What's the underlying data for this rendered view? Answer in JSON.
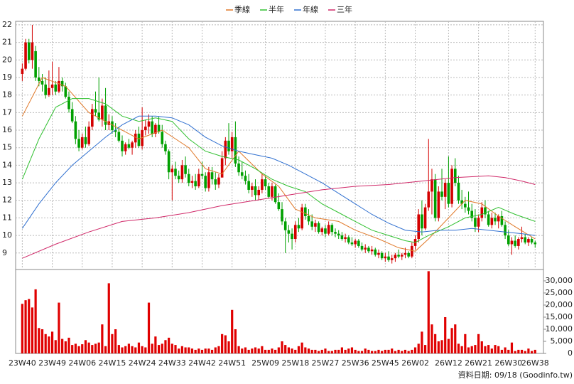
{
  "chart_data": {
    "type": "candlestick",
    "source": "資料日期: 09/18 (Goodinfo.tw)",
    "up_color": "#d40000",
    "down_color": "#00a000",
    "grid": true,
    "xlim": [
      -2,
      156.5
    ],
    "xticks": [
      {
        "value": 0,
        "label": "23W40"
      },
      {
        "value": 9,
        "label": "23W49"
      },
      {
        "value": 18,
        "label": "24W06"
      },
      {
        "value": 27,
        "label": "24W15"
      },
      {
        "value": 36,
        "label": "24W24"
      },
      {
        "value": 45,
        "label": "24W33"
      },
      {
        "value": 54,
        "label": "24W42"
      },
      {
        "value": 63,
        "label": "24W51"
      },
      {
        "value": 73,
        "label": "25W09"
      },
      {
        "value": 82,
        "label": "25W18"
      },
      {
        "value": 91,
        "label": "25W27"
      },
      {
        "value": 100,
        "label": "25W36"
      },
      {
        "value": 109,
        "label": "25W45"
      },
      {
        "value": 118,
        "label": "26W02"
      },
      {
        "value": 128,
        "label": "26W12"
      },
      {
        "value": 137,
        "label": "26W21"
      },
      {
        "value": 146,
        "label": "26W30"
      },
      {
        "value": 154,
        "label": "26W38"
      }
    ],
    "ylim": [
      8.1,
      22.2
    ],
    "yticks": [
      9,
      10,
      11,
      12,
      13,
      14,
      15,
      16,
      17,
      18,
      19,
      20,
      21,
      22
    ],
    "ohlc": [
      [
        19.2,
        19.8,
        18.8,
        19.5
      ],
      [
        19.5,
        21.2,
        19.4,
        21.0
      ],
      [
        21.0,
        21.2,
        19.8,
        20.0
      ],
      [
        20.0,
        22.0,
        19.5,
        21.0
      ],
      [
        20.5,
        20.8,
        18.8,
        19.0
      ],
      [
        19.0,
        19.6,
        18.5,
        18.8
      ],
      [
        18.8,
        19.2,
        18.2,
        18.6
      ],
      [
        18.6,
        19.0,
        17.8,
        18.0
      ],
      [
        18.0,
        19.4,
        17.9,
        18.4
      ],
      [
        18.4,
        19.9,
        18.0,
        18.6
      ],
      [
        18.6,
        18.8,
        18.0,
        18.2
      ],
      [
        18.2,
        19.6,
        18.1,
        18.8
      ],
      [
        18.8,
        19.0,
        18.2,
        18.5
      ],
      [
        18.5,
        18.7,
        17.8,
        17.9
      ],
      [
        17.9,
        18.2,
        17.0,
        17.2
      ],
      [
        17.2,
        17.6,
        16.4,
        16.5
      ],
      [
        16.5,
        16.8,
        15.2,
        15.5
      ],
      [
        15.5,
        16.0,
        14.8,
        15.0
      ],
      [
        15.0,
        15.8,
        14.9,
        15.6
      ],
      [
        15.6,
        16.2,
        15.0,
        15.2
      ],
      [
        15.2,
        16.5,
        15.1,
        16.2
      ],
      [
        16.2,
        17.5,
        16.0,
        17.2
      ],
      [
        17.2,
        18.2,
        16.8,
        17.0
      ],
      [
        17.0,
        19.0,
        16.5,
        16.6
      ],
      [
        16.6,
        17.8,
        16.2,
        17.4
      ],
      [
        17.4,
        18.4,
        16.0,
        16.3
      ],
      [
        16.3,
        16.9,
        16.0,
        16.5
      ],
      [
        16.5,
        16.8,
        15.8,
        16.0
      ],
      [
        16.0,
        16.4,
        15.6,
        15.9
      ],
      [
        15.9,
        16.2,
        15.3,
        15.4
      ],
      [
        15.4,
        15.7,
        14.5,
        14.8
      ],
      [
        14.8,
        15.3,
        14.6,
        15.2
      ],
      [
        15.2,
        15.5,
        14.9,
        15.0
      ],
      [
        15.0,
        15.4,
        14.6,
        15.3
      ],
      [
        15.3,
        16.0,
        15.0,
        15.8
      ],
      [
        15.8,
        16.2,
        15.0,
        15.1
      ],
      [
        15.1,
        17.3,
        14.9,
        16.0
      ],
      [
        16.0,
        16.6,
        15.7,
        16.2
      ],
      [
        16.2,
        16.9,
        15.8,
        16.5
      ],
      [
        16.5,
        16.8,
        15.6,
        15.8
      ],
      [
        15.8,
        16.4,
        15.6,
        16.3
      ],
      [
        16.3,
        16.8,
        15.8,
        15.9
      ],
      [
        15.9,
        16.3,
        15.0,
        15.2
      ],
      [
        15.2,
        15.4,
        14.6,
        14.8
      ],
      [
        14.8,
        14.9,
        13.2,
        13.6
      ],
      [
        13.6,
        14.0,
        12.0,
        13.8
      ],
      [
        13.8,
        14.2,
        13.2,
        13.4
      ],
      [
        13.4,
        13.7,
        13.0,
        13.2
      ],
      [
        13.2,
        14.3,
        13.0,
        14.0
      ],
      [
        14.0,
        14.5,
        13.3,
        13.5
      ],
      [
        13.5,
        13.8,
        12.8,
        13.0
      ],
      [
        13.0,
        13.4,
        12.7,
        13.1
      ],
      [
        13.1,
        13.5,
        12.6,
        12.8
      ],
      [
        12.8,
        13.8,
        12.7,
        13.5
      ],
      [
        13.5,
        14.2,
        13.2,
        13.4
      ],
      [
        13.4,
        13.6,
        12.5,
        12.7
      ],
      [
        12.7,
        13.9,
        12.5,
        13.6
      ],
      [
        13.6,
        13.9,
        12.9,
        13.2
      ],
      [
        13.2,
        13.6,
        12.6,
        12.9
      ],
      [
        12.9,
        13.5,
        12.7,
        13.3
      ],
      [
        13.3,
        14.8,
        13.3,
        14.4
      ],
      [
        14.4,
        15.6,
        14.0,
        15.4
      ],
      [
        15.4,
        16.4,
        14.6,
        14.8
      ],
      [
        14.8,
        15.9,
        14.4,
        15.6
      ],
      [
        15.6,
        16.5,
        13.9,
        14.1
      ],
      [
        14.1,
        14.5,
        13.4,
        13.6
      ],
      [
        13.6,
        14.2,
        13.2,
        13.4
      ],
      [
        13.4,
        13.7,
        12.9,
        13.1
      ],
      [
        13.1,
        13.5,
        12.4,
        12.6
      ],
      [
        12.6,
        13.0,
        12.2,
        12.8
      ],
      [
        12.8,
        13.2,
        12.0,
        12.3
      ],
      [
        12.3,
        12.8,
        12.0,
        12.6
      ],
      [
        12.6,
        13.5,
        12.4,
        13.2
      ],
      [
        13.2,
        13.4,
        12.6,
        12.8
      ],
      [
        12.8,
        13.0,
        12.1,
        12.2
      ],
      [
        12.2,
        13.0,
        12.0,
        12.8
      ],
      [
        12.8,
        12.9,
        11.8,
        11.9
      ],
      [
        11.9,
        12.4,
        11.4,
        11.5
      ],
      [
        11.5,
        11.9,
        10.6,
        10.8
      ],
      [
        10.8,
        11.0,
        9.0,
        10.3
      ],
      [
        10.3,
        10.6,
        9.6,
        10.1
      ],
      [
        10.1,
        10.4,
        9.2,
        9.8
      ],
      [
        9.8,
        10.8,
        9.6,
        10.6
      ],
      [
        10.6,
        11.0,
        10.2,
        10.4
      ],
      [
        10.4,
        11.8,
        10.3,
        11.6
      ],
      [
        11.6,
        11.8,
        10.9,
        11.1
      ],
      [
        11.1,
        11.5,
        10.6,
        10.8
      ],
      [
        10.8,
        11.2,
        10.3,
        10.5
      ],
      [
        10.5,
        10.9,
        10.2,
        10.7
      ],
      [
        10.7,
        10.8,
        10.1,
        10.2
      ],
      [
        10.2,
        10.5,
        10.0,
        10.4
      ],
      [
        10.4,
        10.6,
        9.9,
        10.1
      ],
      [
        10.1,
        10.8,
        10.0,
        10.6
      ],
      [
        10.6,
        10.7,
        10.0,
        10.2
      ],
      [
        10.2,
        10.4,
        9.9,
        10.1
      ],
      [
        10.1,
        10.3,
        9.8,
        10.0
      ],
      [
        10.0,
        10.2,
        9.7,
        9.8
      ],
      [
        9.8,
        10.1,
        9.6,
        9.9
      ],
      [
        9.9,
        10.0,
        9.5,
        9.6
      ],
      [
        9.6,
        9.9,
        9.4,
        9.5
      ],
      [
        9.5,
        9.8,
        9.3,
        9.7
      ],
      [
        9.7,
        9.8,
        9.3,
        9.4
      ],
      [
        9.4,
        9.6,
        9.1,
        9.2
      ],
      [
        9.2,
        9.5,
        9.0,
        9.3
      ],
      [
        9.3,
        9.4,
        9.0,
        9.1
      ],
      [
        9.1,
        9.4,
        8.9,
        9.2
      ],
      [
        9.2,
        9.3,
        8.8,
        8.9
      ],
      [
        8.9,
        9.2,
        8.7,
        9.0
      ],
      [
        9.0,
        9.1,
        8.6,
        8.7
      ],
      [
        8.7,
        9.0,
        8.5,
        8.8
      ],
      [
        8.8,
        9.1,
        8.5,
        8.6
      ],
      [
        8.6,
        8.9,
        8.4,
        8.7
      ],
      [
        8.7,
        9.0,
        8.5,
        8.9
      ],
      [
        8.9,
        9.2,
        8.7,
        8.8
      ],
      [
        8.8,
        9.0,
        8.6,
        8.9
      ],
      [
        8.9,
        9.3,
        8.7,
        9.0
      ],
      [
        9.0,
        9.1,
        8.7,
        8.8
      ],
      [
        8.8,
        9.6,
        8.7,
        9.4
      ],
      [
        9.4,
        10.0,
        9.2,
        9.8
      ],
      [
        9.8,
        11.5,
        9.6,
        11.2
      ],
      [
        11.2,
        12.0,
        10.0,
        10.4
      ],
      [
        10.4,
        11.8,
        10.3,
        11.6
      ],
      [
        11.6,
        15.5,
        11.4,
        12.5
      ],
      [
        12.5,
        13.8,
        11.2,
        13.2
      ],
      [
        13.2,
        13.5,
        10.8,
        11.0
      ],
      [
        11.0,
        12.8,
        10.8,
        12.5
      ],
      [
        12.5,
        13.8,
        12.0,
        12.2
      ],
      [
        12.2,
        13.2,
        11.5,
        13.0
      ],
      [
        13.0,
        14.5,
        11.6,
        11.8
      ],
      [
        11.8,
        14.0,
        11.6,
        13.8
      ],
      [
        13.8,
        14.4,
        12.8,
        13.0
      ],
      [
        13.0,
        13.4,
        11.8,
        12.0
      ],
      [
        12.0,
        12.6,
        11.5,
        11.8
      ],
      [
        11.8,
        12.2,
        11.3,
        11.6
      ],
      [
        11.6,
        12.5,
        11.2,
        11.4
      ],
      [
        11.4,
        11.8,
        10.8,
        11.0
      ],
      [
        11.0,
        11.5,
        10.2,
        10.5
      ],
      [
        10.5,
        11.2,
        10.2,
        11.0
      ],
      [
        11.0,
        11.9,
        10.8,
        11.6
      ],
      [
        11.6,
        12.0,
        11.0,
        11.2
      ],
      [
        11.2,
        11.4,
        10.5,
        10.6
      ],
      [
        10.6,
        11.3,
        10.4,
        11.0
      ],
      [
        11.0,
        11.3,
        10.6,
        10.8
      ],
      [
        10.8,
        11.2,
        10.4,
        11.1
      ],
      [
        11.1,
        11.4,
        10.5,
        10.6
      ],
      [
        10.6,
        10.8,
        9.8,
        10.0
      ],
      [
        10.0,
        10.3,
        9.4,
        9.5
      ],
      [
        9.5,
        9.9,
        8.9,
        9.7
      ],
      [
        9.7,
        10.0,
        9.3,
        9.4
      ],
      [
        9.4,
        9.9,
        9.2,
        9.8
      ],
      [
        9.8,
        10.5,
        9.6,
        9.9
      ],
      [
        9.9,
        10.1,
        9.5,
        9.6
      ],
      [
        9.6,
        9.9,
        9.4,
        9.8
      ],
      [
        9.8,
        9.9,
        9.5,
        9.6
      ],
      [
        9.6,
        9.7,
        9.3,
        9.5
      ]
    ],
    "series": [
      {
        "name": "季線",
        "color": "#e07828",
        "x": [
          0,
          6,
          13,
          20,
          28,
          35,
          42,
          50,
          55,
          60,
          65,
          72,
          77,
          82,
          88,
          95,
          100,
          107,
          113,
          118,
          122,
          128,
          133,
          138,
          143,
          148,
          154
        ],
        "values": [
          16.8,
          19,
          18.5,
          17,
          16.2,
          15.5,
          16,
          15,
          13.8,
          13.5,
          14.8,
          13.5,
          12.8,
          11.5,
          11,
          10.8,
          10.3,
          9.8,
          9.3,
          9.1,
          9.8,
          11,
          12,
          11.8,
          11.1,
          10.5,
          9.8
        ]
      },
      {
        "name": "半年",
        "color": "#30c030",
        "x": [
          0,
          5,
          10,
          15,
          20,
          25,
          30,
          35,
          40,
          45,
          50,
          55,
          60,
          65,
          70,
          75,
          80,
          85,
          90,
          95,
          100,
          105,
          110,
          115,
          118,
          122,
          128,
          133,
          138,
          143,
          148,
          154
        ],
        "values": [
          13.2,
          15.5,
          17.3,
          17.8,
          17.8,
          17.5,
          16.8,
          16.5,
          16.7,
          16.5,
          15.5,
          14.8,
          14.5,
          14.3,
          13.8,
          13.2,
          12.8,
          12.5,
          11.8,
          11.3,
          10.8,
          10.3,
          10,
          9.7,
          9.6,
          10,
          10.5,
          11,
          11.2,
          11.6,
          11.2,
          10.8
        ]
      },
      {
        "name": "年線",
        "color": "#3070d0",
        "x": [
          0,
          5,
          10,
          15,
          20,
          25,
          30,
          35,
          40,
          45,
          50,
          55,
          60,
          65,
          70,
          75,
          80,
          85,
          90,
          95,
          100,
          105,
          110,
          115,
          120,
          125,
          130,
          135,
          140,
          145,
          150,
          154
        ],
        "values": [
          10.4,
          11.8,
          13,
          14,
          14.8,
          15.6,
          16.3,
          16.8,
          16.8,
          16.7,
          16.3,
          15.6,
          15.1,
          14.8,
          14.6,
          14.4,
          14,
          13.5,
          13,
          12.4,
          11.8,
          11.2,
          10.7,
          10.3,
          10.2,
          10.3,
          10.3,
          10.4,
          10.3,
          10.2,
          10.1,
          10
        ]
      },
      {
        "name": "三年",
        "color": "#d02868",
        "x": [
          0,
          10,
          20,
          30,
          40,
          50,
          60,
          70,
          80,
          90,
          100,
          110,
          120,
          130,
          140,
          145,
          150,
          154
        ],
        "values": [
          8.7,
          9.5,
          10.2,
          10.8,
          11,
          11.3,
          11.7,
          12,
          12.3,
          12.6,
          12.8,
          12.9,
          13.1,
          13.3,
          13.4,
          13.3,
          13.1,
          12.9
        ]
      }
    ],
    "volume": {
      "color": "#e00000",
      "ylim": [
        0,
        34400
      ],
      "yticks": [
        0,
        {
          "value": 5000,
          "label": "5,000"
        },
        {
          "value": 10000,
          "label": "10,000"
        },
        {
          "value": 15000,
          "label": "15,000"
        },
        {
          "value": 20000,
          "label": "20,000"
        },
        {
          "value": 25000,
          "label": "25,000"
        },
        {
          "value": 30000,
          "label": "30,000"
        }
      ],
      "values": [
        20500,
        22000,
        22500,
        19000,
        26500,
        10500,
        10000,
        8000,
        7000,
        9000,
        5500,
        21000,
        6000,
        5000,
        6500,
        3500,
        4000,
        3000,
        3800,
        5500,
        4500,
        3500,
        4000,
        4500,
        12000,
        3000,
        29000,
        8000,
        10000,
        3500,
        2500,
        3000,
        4000,
        3000,
        2500,
        4500,
        3000,
        2500,
        21000,
        4000,
        7000,
        3500,
        4000,
        5500,
        6500,
        4000,
        3500,
        2000,
        3000,
        2500,
        2500,
        2000,
        1500,
        2000,
        1500,
        2000,
        2000,
        1500,
        2500,
        3000,
        8000,
        7500,
        5000,
        18000,
        10000,
        3000,
        2000,
        2500,
        1500,
        2000,
        2500,
        2000,
        3000,
        1500,
        1500,
        2000,
        1500,
        2500,
        5000,
        3500,
        2500,
        2000,
        1500,
        3000,
        4500,
        2500,
        2000,
        1500,
        1500,
        1000,
        1500,
        2000,
        1000,
        1000,
        1500,
        1500,
        2500,
        1500,
        2000,
        2500,
        1500,
        1000,
        1000,
        2000,
        1500,
        1000,
        1000,
        1500,
        1000,
        1500,
        1500,
        2000,
        1000,
        1500,
        1000,
        1500,
        1000,
        1500,
        2500,
        4000,
        9000,
        3500,
        34000,
        12000,
        8000,
        5000,
        5500,
        15000,
        6000,
        10500,
        12000,
        4000,
        3000,
        8000,
        2500,
        3000,
        3500,
        8000,
        5000,
        3000,
        3500,
        2000,
        3500,
        3000,
        1500,
        2500,
        1500,
        4500,
        1000,
        1500,
        1500,
        1000,
        2000,
        1000,
        1500
      ]
    }
  }
}
